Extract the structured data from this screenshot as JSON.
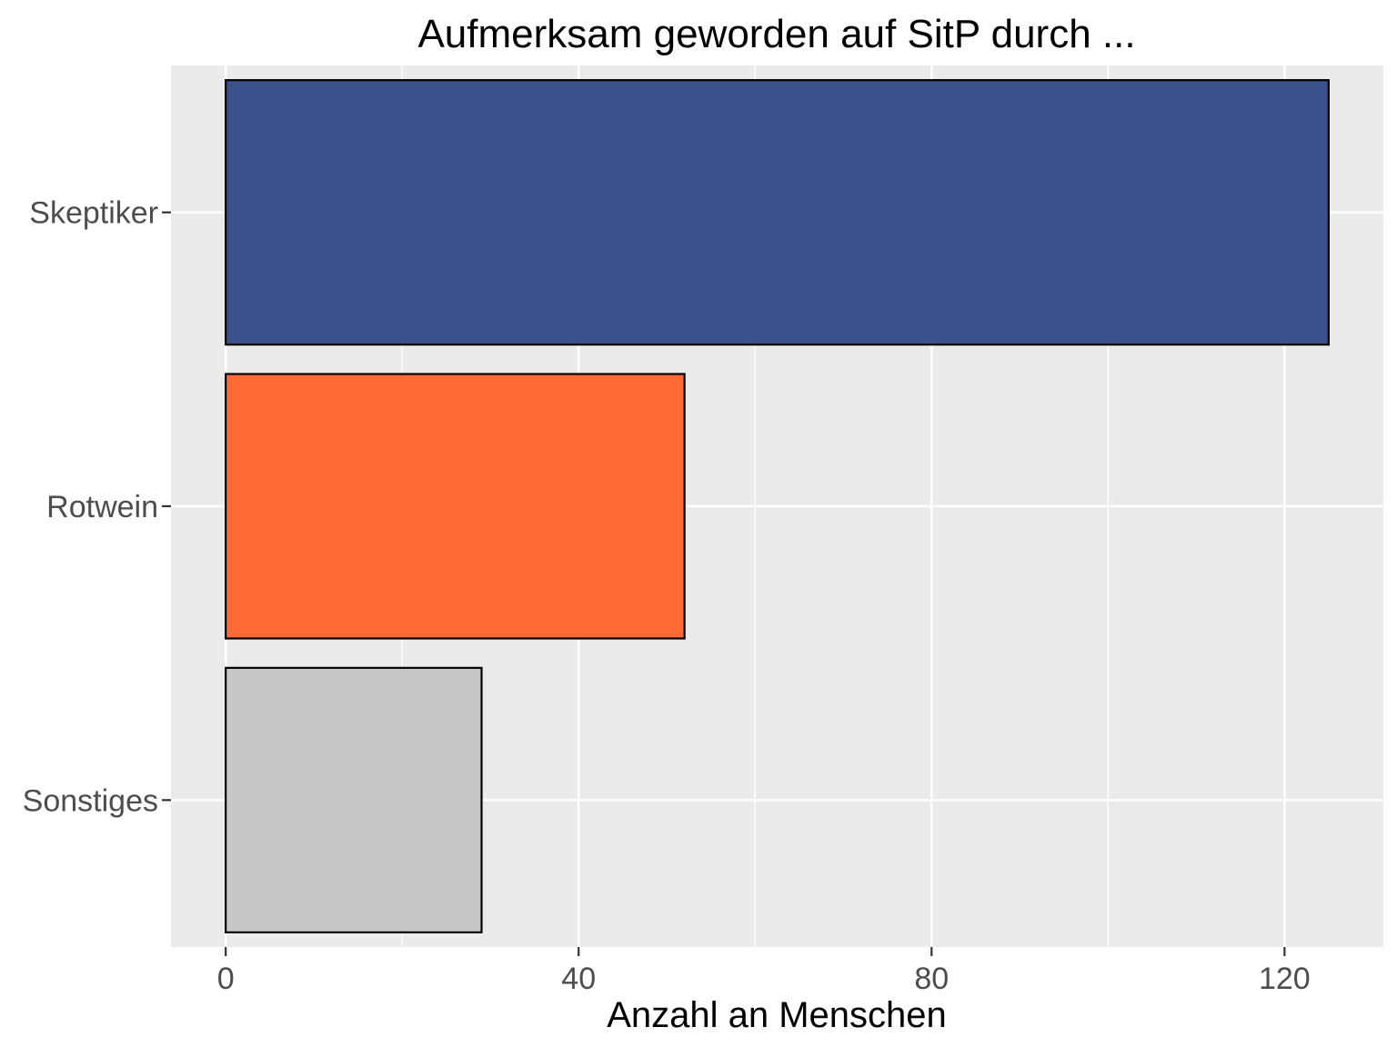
{
  "chart_data": {
    "type": "bar",
    "orientation": "horizontal",
    "title": "Aufmerksam geworden auf SitP durch ...",
    "xlabel": "Anzahl an Menschen",
    "ylabel": "",
    "categories": [
      "Skeptiker",
      "Rotwein",
      "Sonstiges"
    ],
    "values": [
      125,
      52,
      29
    ],
    "colors": [
      "#3a518b",
      "#fd6a33",
      "#c6c6c6"
    ],
    "xlim": [
      -6.2,
      131.2
    ],
    "xticks": [
      0,
      40,
      80,
      120
    ],
    "xtick_labels": [
      "0",
      "40",
      "80",
      "120"
    ],
    "grid": true,
    "legend": "none",
    "panel_background": "#ebebeb",
    "grid_color": "#ffffff"
  }
}
